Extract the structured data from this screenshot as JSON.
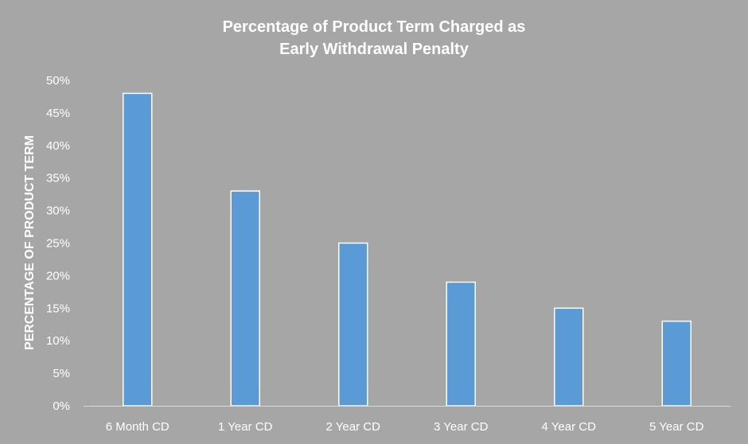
{
  "chart_data": {
    "type": "bar",
    "title_line1": "Percentage of Product Term Charged as",
    "title_line2": "Early Withdrawal Penalty",
    "xlabel": "",
    "ylabel": "PERCENTAGE OF PRODUCT TERM",
    "categories": [
      "6 Month CD",
      "1 Year CD",
      "2 Year CD",
      "3 Year CD",
      "4 Year CD",
      "5 Year CD"
    ],
    "values": [
      48,
      33,
      25,
      19,
      15,
      13
    ],
    "ylim": [
      0,
      50
    ],
    "yticks": [
      "0%",
      "5%",
      "10%",
      "15%",
      "20%",
      "25%",
      "30%",
      "35%",
      "40%",
      "45%",
      "50%"
    ],
    "grid": false,
    "legend": "none",
    "colors": {
      "background": "#a6a6a6",
      "bar_fill": "#5b9bd5",
      "bar_stroke": "#ffffff",
      "axis_line": "#d9d9d9",
      "text": "#ffffff"
    }
  }
}
